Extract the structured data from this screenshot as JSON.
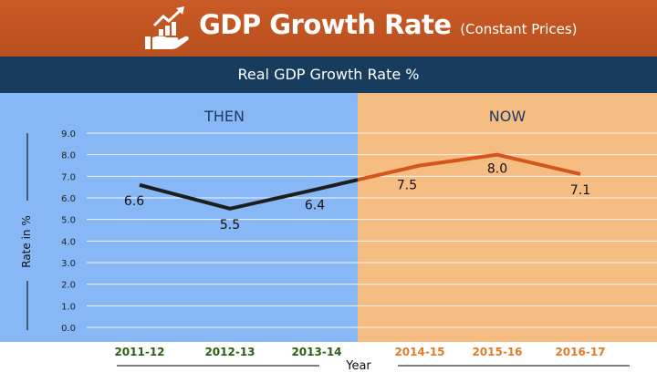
{
  "header": {
    "title": "GDP Growth Rate",
    "subtitle": "(Constant Prices)",
    "logo_icon": "growth-chart-hand-icon"
  },
  "band": {
    "text": "Real GDP Growth Rate %"
  },
  "panels": {
    "then_label": "THEN",
    "now_label": "NOW",
    "then_color": "#88b7f5",
    "now_color": "#f5bd82"
  },
  "chart_data": {
    "type": "line",
    "ylabel": "Rate in %",
    "xlabel": "Year",
    "ylim": [
      0,
      9
    ],
    "yticks": [
      "0.0",
      "1.0",
      "2.0",
      "3.0",
      "4.0",
      "5.0",
      "6.0",
      "7.0",
      "8.0",
      "9.0"
    ],
    "grid": true,
    "categories": [
      "2011-12",
      "2012-13",
      "2013-14",
      "2014-15",
      "2015-16",
      "2016-17"
    ],
    "values": [
      6.6,
      5.5,
      6.4,
      7.5,
      8.0,
      7.1
    ],
    "labels": [
      "6.6",
      "5.5",
      "6.4",
      "7.5",
      "8.0",
      "7.1"
    ],
    "then_color": "#1d1d1d",
    "now_color": "#d4561d",
    "then_tick_color": "#2e5e16",
    "now_tick_color": "#e07c2a"
  }
}
